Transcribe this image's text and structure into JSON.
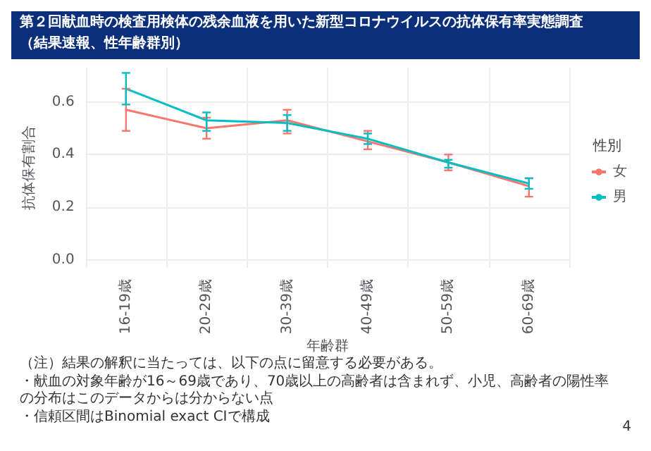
{
  "chart_data": {
    "type": "line",
    "title": "第２回献血時の検査用検体の残余血液を用いた新型コロナウイルスの抗体保有率実態調査",
    "subtitle": "（結果速報、性年齢群別）",
    "xlabel": "年齢群",
    "ylabel": "抗体保有割合",
    "legend_title": "性別",
    "categories": [
      "16-19歳",
      "20-29歳",
      "30-39歳",
      "40-49歳",
      "50-59歳",
      "60-69歳"
    ],
    "series": [
      {
        "name": "女",
        "color": "#f8766d",
        "values": [
          0.57,
          0.5,
          0.53,
          0.45,
          0.37,
          0.28
        ],
        "errors": [
          [
            0.49,
            0.65
          ],
          [
            0.46,
            0.54
          ],
          [
            0.48,
            0.57
          ],
          [
            0.42,
            0.49
          ],
          [
            0.34,
            0.4
          ],
          [
            0.24,
            0.31
          ]
        ]
      },
      {
        "name": "男",
        "color": "#00bfc4",
        "values": [
          0.65,
          0.53,
          0.52,
          0.46,
          0.37,
          0.29
        ],
        "errors": [
          [
            0.59,
            0.71
          ],
          [
            0.49,
            0.56
          ],
          [
            0.49,
            0.55
          ],
          [
            0.44,
            0.48
          ],
          [
            0.35,
            0.38
          ],
          [
            0.27,
            0.31
          ]
        ]
      }
    ],
    "ylim": [
      -0.03,
      0.73
    ],
    "yticks": [
      {
        "value": 0,
        "label": "0.0"
      },
      {
        "value": 0.2,
        "label": "0.2"
      },
      {
        "value": 0.4,
        "label": "0.4"
      },
      {
        "value": 0.6,
        "label": "0.6"
      }
    ],
    "grid": true,
    "legend": "right",
    "marker": "none",
    "line_style": "solid",
    "annotations": [
      "（注）結果の解釈に当たっては、以下の点に留意する必要がある。",
      "・献血の対象年齢が16～69歳であり、70歳以上の高齢者は含まれず、小児、高齢者の陽性率の分布はこのデータからは分からない点",
      "・信頼区間はBinomial exact CIで構成",
      "4"
    ]
  }
}
